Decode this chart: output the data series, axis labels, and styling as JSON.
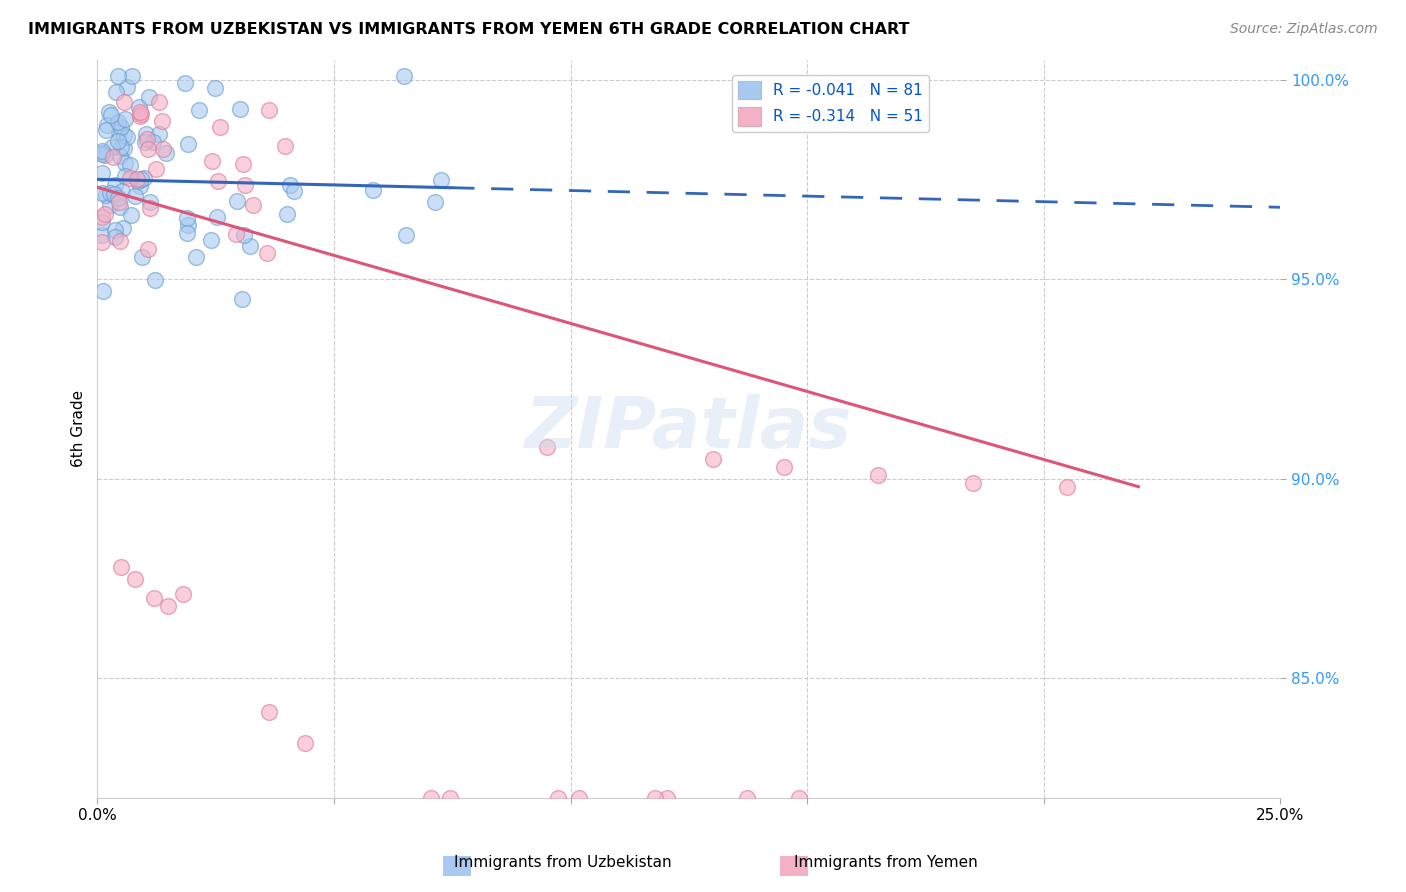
{
  "title": "IMMIGRANTS FROM UZBEKISTAN VS IMMIGRANTS FROM YEMEN 6TH GRADE CORRELATION CHART",
  "source": "Source: ZipAtlas.com",
  "ylabel": "6th Grade",
  "xlim": [
    0.0,
    0.25
  ],
  "ylim": [
    0.82,
    1.005
  ],
  "yticks": [
    0.85,
    0.9,
    0.95,
    1.0
  ],
  "ytick_labels": [
    "85.0%",
    "90.0%",
    "95.0%",
    "100.0%"
  ],
  "R_uzbek": -0.041,
  "N_uzbek": 81,
  "R_yemen": -0.314,
  "N_yemen": 51,
  "uzbek_color": "#a8caf0",
  "uzbek_edge_color": "#6699cc",
  "yemen_color": "#f4b0c4",
  "yemen_edge_color": "#dd7799",
  "uzbek_line_color": "#3366bb",
  "yemen_line_color": "#dd5577",
  "legend_r_color": "#0055cc",
  "watermark": "ZIPatlas",
  "uzbek_line_solid_end": 0.075,
  "uzbek_line_x0": 0.0,
  "uzbek_line_x1": 0.25,
  "uzbek_line_y0": 0.975,
  "uzbek_line_y1": 0.968,
  "yemen_line_x0": 0.0,
  "yemen_line_x1": 0.22,
  "yemen_line_y0": 0.973,
  "yemen_line_y1": 0.898
}
